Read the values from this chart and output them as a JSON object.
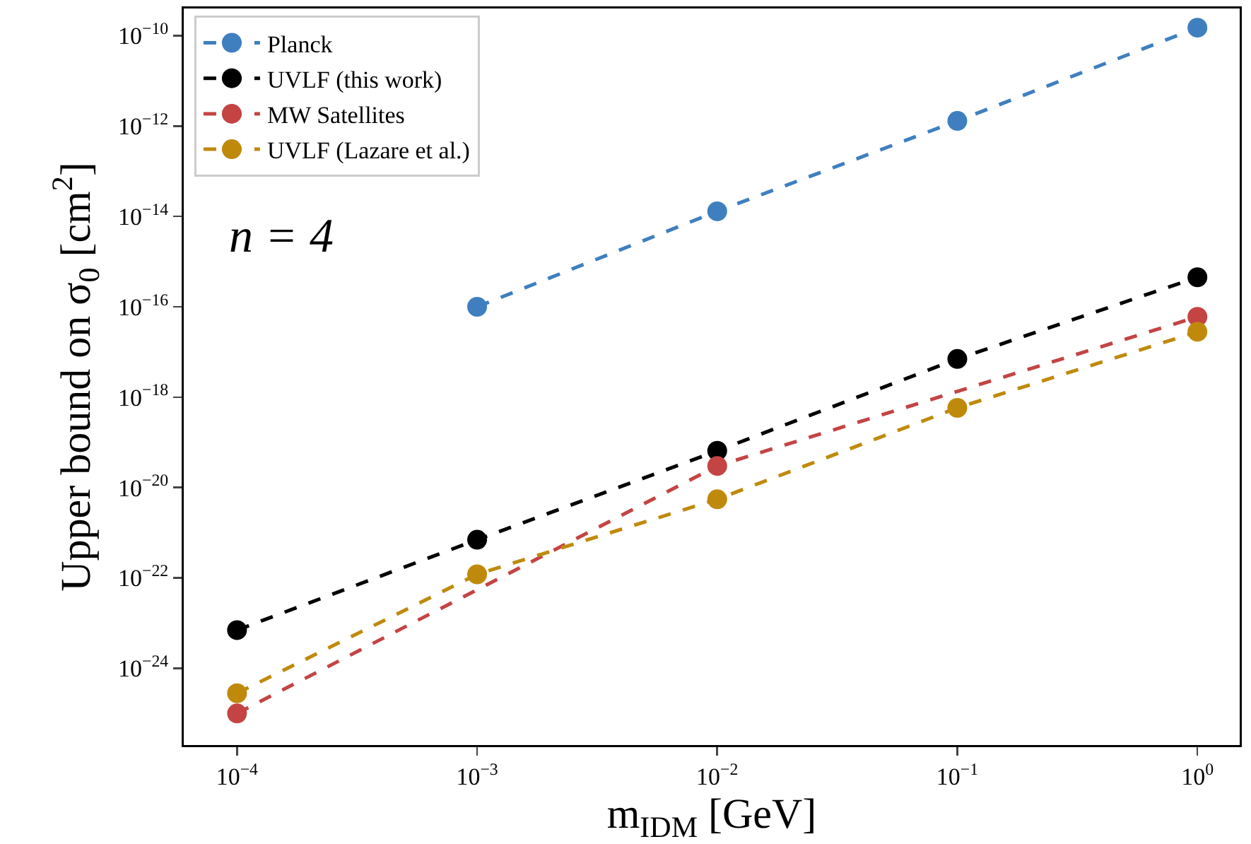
{
  "chart_data": {
    "type": "line",
    "xlabel": "m$_{IDM}$ [GeV]",
    "ylabel": "Upper bound on σ$_{0}$ [cm$^{2}$]",
    "annotations": [
      "n = 4"
    ],
    "log": "xy",
    "grid": false,
    "legend": "top left",
    "marker": "circle",
    "line_style": "dashed",
    "xlim": [
      6e-05,
      1.5
    ],
    "ylim": [
      2e-26,
      4e-10
    ],
    "xticks": [
      {
        "value": 0.0001,
        "label": "10$^{−4}$"
      },
      {
        "value": 0.001,
        "label": "10$^{−3}$"
      },
      {
        "value": 0.01,
        "label": "10$^{−2}$"
      },
      {
        "value": 0.1,
        "label": "10$^{−1}$"
      },
      {
        "value": 1,
        "label": "10$^{0}$"
      }
    ],
    "yticks": [
      {
        "value": 1e-24,
        "label": "10$^{−24}$"
      },
      {
        "value": 1e-22,
        "label": "10$^{−22}$"
      },
      {
        "value": 1e-20,
        "label": "10$^{−20}$"
      },
      {
        "value": 1e-18,
        "label": "10$^{−18}$"
      },
      {
        "value": 1e-16,
        "label": "10$^{−16}$"
      },
      {
        "value": 1e-14,
        "label": "10$^{−14}$"
      },
      {
        "value": 1e-12,
        "label": "10$^{−12}$"
      },
      {
        "value": 1e-10,
        "label": "10$^{−10}$"
      }
    ],
    "series": [
      {
        "name": "Planck",
        "color": "#3f7fbf",
        "x": [
          0.001,
          0.01,
          0.1,
          1
        ],
        "values": [
          1e-16,
          1.3e-14,
          1.3e-12,
          1.5e-10
        ]
      },
      {
        "name": "UVLF (this work)",
        "color": "#000000",
        "x": [
          0.0001,
          0.001,
          0.01,
          0.1,
          1
        ],
        "values": [
          7e-24,
          7e-22,
          6.5e-20,
          7e-18,
          4.5e-16
        ]
      },
      {
        "name": "MW Satellites",
        "color": "#c44444",
        "x": [
          0.0001,
          0.01,
          1
        ],
        "values": [
          1e-25,
          3e-20,
          6e-17
        ]
      },
      {
        "name": "UVLF (Lazare et al.)",
        "color": "#bf8a0c",
        "x": [
          0.0001,
          0.001,
          0.01,
          0.1,
          1
        ],
        "values": [
          2.8e-25,
          1.2e-22,
          5.5e-21,
          5.8e-19,
          2.8e-17
        ]
      }
    ]
  }
}
